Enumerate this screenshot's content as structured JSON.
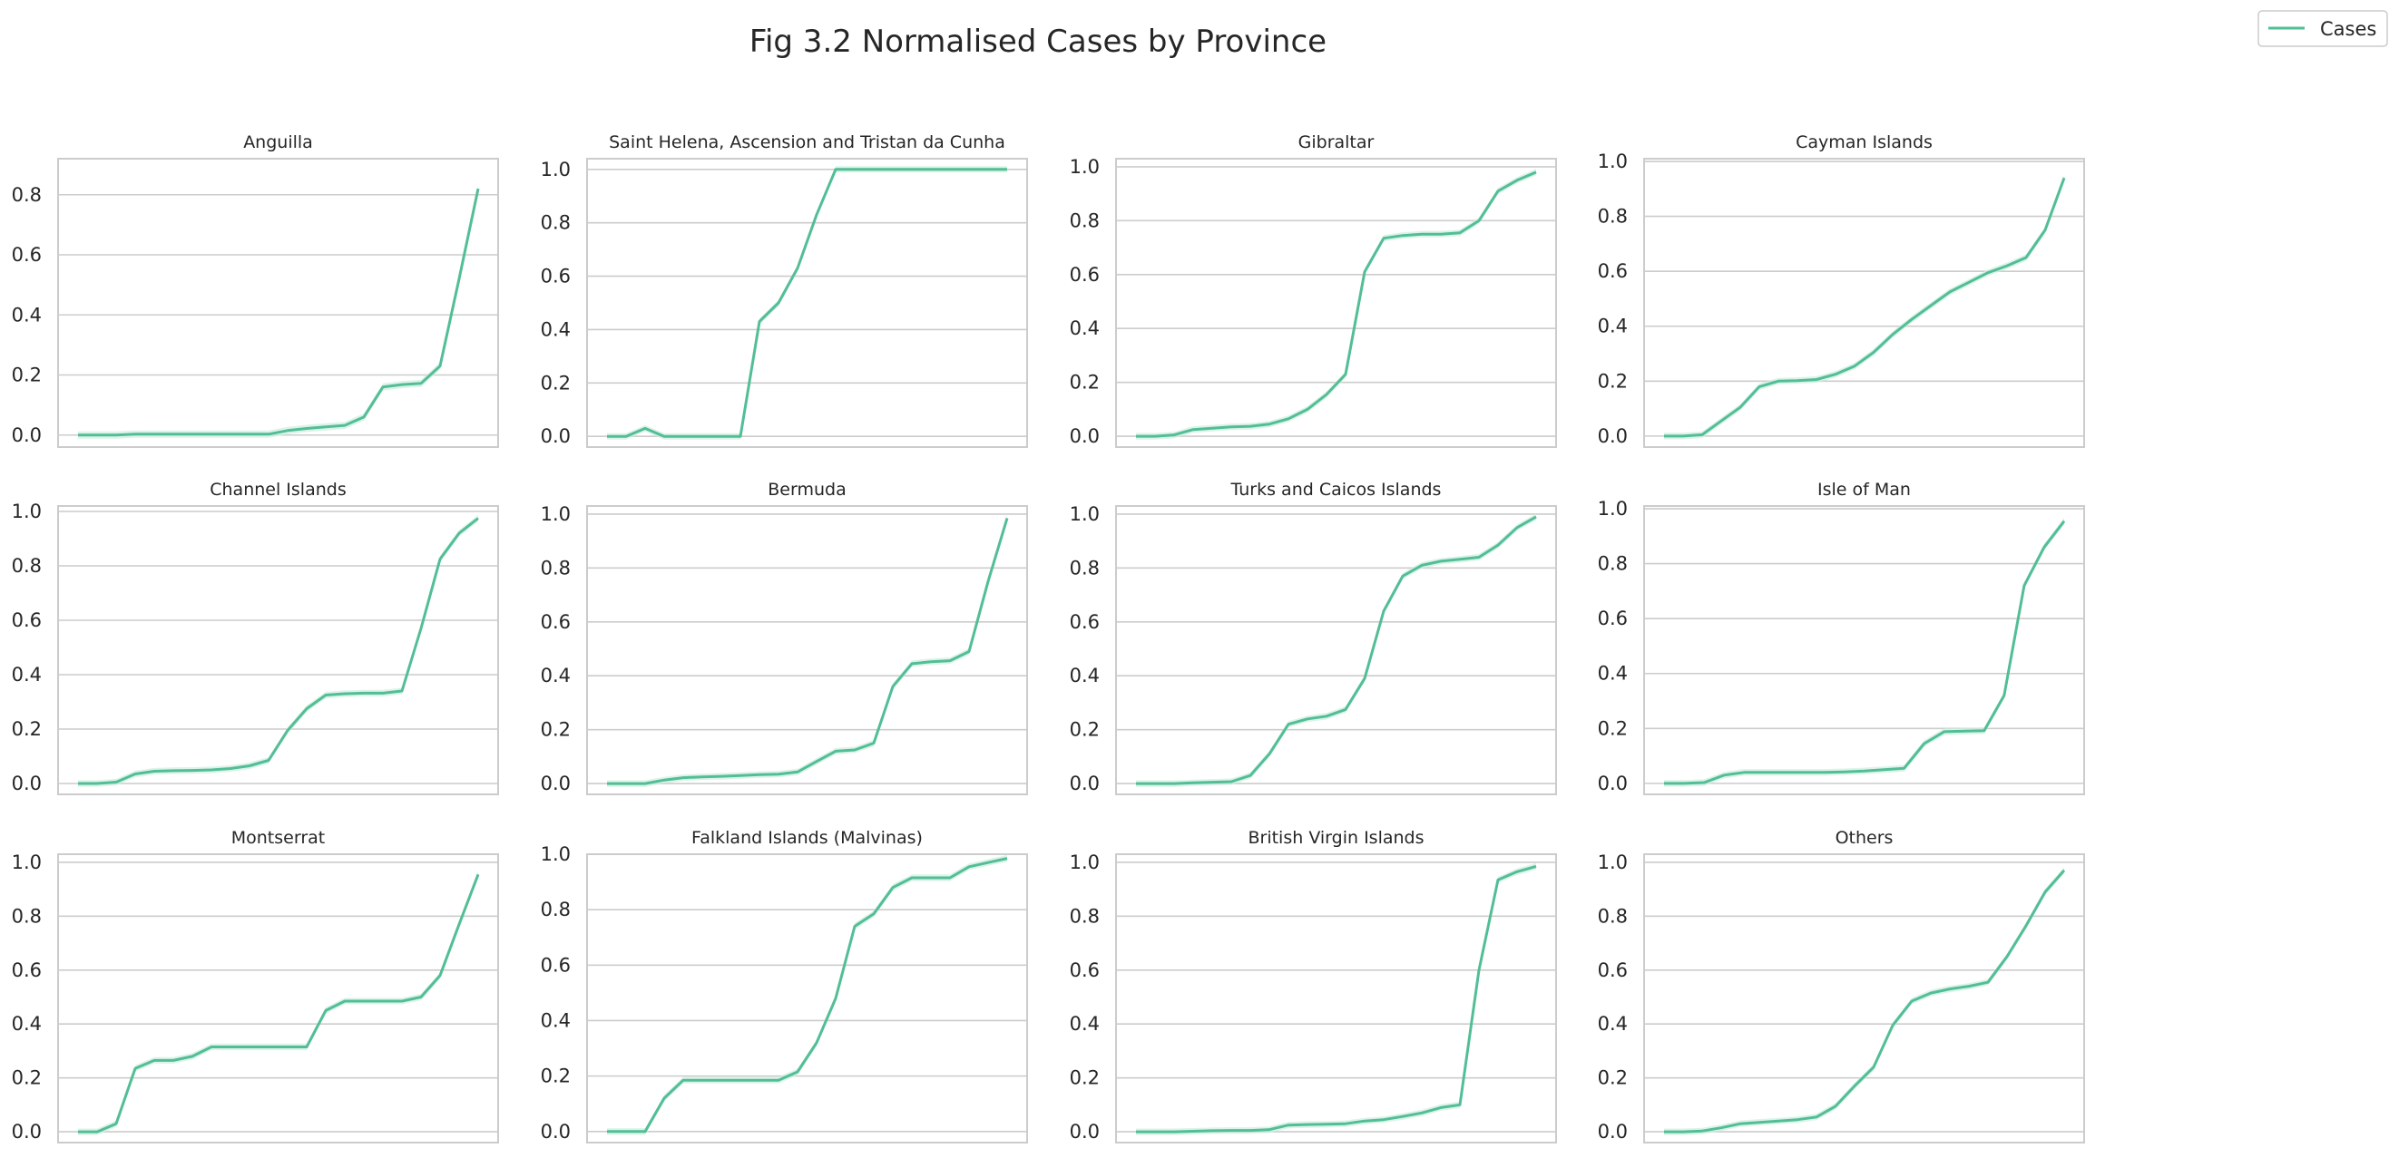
{
  "figure": {
    "title": "Fig 3.2 Normalised Cases by Province",
    "legend": {
      "label": "Cases",
      "placement": "top-right"
    },
    "colors": {
      "line": "#52be96",
      "band": "#cdeee0",
      "grid": "#cccccc",
      "axes": "#cccccc",
      "text": "#262626"
    }
  },
  "chart_data": [
    {
      "type": "line",
      "title": "Anguilla",
      "ylim": [
        -0.04,
        0.92
      ],
      "yticks": [
        "0.0",
        "0.2",
        "0.4",
        "0.6",
        "0.8"
      ],
      "grid": true,
      "series": [
        {
          "name": "Cases",
          "values": [
            0.0,
            0.0,
            0.0,
            0.003,
            0.003,
            0.003,
            0.003,
            0.003,
            0.003,
            0.003,
            0.003,
            0.015,
            0.022,
            0.027,
            0.032,
            0.06,
            0.16,
            0.168,
            0.172,
            0.23,
            0.52,
            0.82
          ]
        }
      ]
    },
    {
      "type": "line",
      "title": "Saint Helena, Ascension and Tristan da Cunha",
      "ylim": [
        -0.04,
        1.04
      ],
      "yticks": [
        "0.0",
        "0.2",
        "0.4",
        "0.6",
        "0.8",
        "1.0"
      ],
      "grid": true,
      "series": [
        {
          "name": "Cases",
          "values": [
            0.0,
            0.0,
            0.03,
            0.0,
            0.0,
            0.0,
            0.0,
            0.0,
            0.43,
            0.5,
            0.63,
            0.83,
            1.0,
            1.0,
            1.0,
            1.0,
            1.0,
            1.0,
            1.0,
            1.0,
            1.0,
            1.0
          ]
        }
      ]
    },
    {
      "type": "line",
      "title": "Gibraltar",
      "ylim": [
        -0.04,
        1.03
      ],
      "yticks": [
        "0.0",
        "0.2",
        "0.4",
        "0.6",
        "0.8",
        "1.0"
      ],
      "grid": true,
      "series": [
        {
          "name": "Cases",
          "values": [
            0.0,
            0.0,
            0.005,
            0.025,
            0.03,
            0.035,
            0.037,
            0.045,
            0.065,
            0.1,
            0.155,
            0.23,
            0.61,
            0.735,
            0.745,
            0.75,
            0.75,
            0.755,
            0.8,
            0.91,
            0.95,
            0.98
          ]
        }
      ]
    },
    {
      "type": "line",
      "title": "Cayman Islands",
      "ylim": [
        -0.04,
        1.01
      ],
      "yticks": [
        "0.0",
        "0.2",
        "0.4",
        "0.6",
        "0.8",
        "1.0"
      ],
      "grid": true,
      "series": [
        {
          "name": "Cases",
          "values": [
            0.0,
            0.0,
            0.005,
            0.055,
            0.105,
            0.18,
            0.2,
            0.202,
            0.206,
            0.225,
            0.255,
            0.305,
            0.37,
            0.425,
            0.475,
            0.525,
            0.56,
            0.595,
            0.62,
            0.65,
            0.75,
            0.94
          ]
        }
      ]
    },
    {
      "type": "line",
      "title": "Channel Islands",
      "ylim": [
        -0.04,
        1.02
      ],
      "yticks": [
        "0.0",
        "0.2",
        "0.4",
        "0.6",
        "0.8",
        "1.0"
      ],
      "grid": true,
      "series": [
        {
          "name": "Cases",
          "values": [
            0.0,
            0.0,
            0.005,
            0.035,
            0.045,
            0.047,
            0.048,
            0.05,
            0.055,
            0.065,
            0.085,
            0.195,
            0.275,
            0.325,
            0.33,
            0.332,
            0.332,
            0.34,
            0.57,
            0.825,
            0.92,
            0.975
          ]
        }
      ]
    },
    {
      "type": "line",
      "title": "Bermuda",
      "ylim": [
        -0.04,
        1.03
      ],
      "yticks": [
        "0.0",
        "0.2",
        "0.4",
        "0.6",
        "0.8",
        "1.0"
      ],
      "grid": true,
      "series": [
        {
          "name": "Cases",
          "values": [
            0.0,
            0.0,
            0.0,
            0.013,
            0.022,
            0.025,
            0.027,
            0.03,
            0.033,
            0.035,
            0.043,
            0.082,
            0.12,
            0.125,
            0.15,
            0.36,
            0.445,
            0.452,
            0.456,
            0.49,
            0.75,
            0.985
          ]
        }
      ]
    },
    {
      "type": "line",
      "title": "Turks and Caicos Islands",
      "ylim": [
        -0.04,
        1.03
      ],
      "yticks": [
        "0.0",
        "0.2",
        "0.4",
        "0.6",
        "0.8",
        "1.0"
      ],
      "grid": true,
      "series": [
        {
          "name": "Cases",
          "values": [
            0.0,
            0.0,
            0.0,
            0.003,
            0.005,
            0.007,
            0.03,
            0.11,
            0.22,
            0.24,
            0.25,
            0.275,
            0.39,
            0.64,
            0.77,
            0.81,
            0.825,
            0.832,
            0.84,
            0.885,
            0.95,
            0.99
          ]
        }
      ]
    },
    {
      "type": "line",
      "title": "Isle of Man",
      "ylim": [
        -0.04,
        1.01
      ],
      "yticks": [
        "0.0",
        "0.2",
        "0.4",
        "0.6",
        "0.8",
        "1.0"
      ],
      "grid": true,
      "series": [
        {
          "name": "Cases",
          "values": [
            0.0,
            0.0,
            0.003,
            0.03,
            0.04,
            0.04,
            0.04,
            0.04,
            0.04,
            0.042,
            0.045,
            0.05,
            0.055,
            0.145,
            0.188,
            0.19,
            0.192,
            0.32,
            0.72,
            0.86,
            0.955
          ]
        }
      ]
    },
    {
      "type": "line",
      "title": "Montserrat",
      "ylim": [
        -0.04,
        1.03
      ],
      "yticks": [
        "0.0",
        "0.2",
        "0.4",
        "0.6",
        "0.8",
        "1.0"
      ],
      "grid": true,
      "series": [
        {
          "name": "Cases",
          "values": [
            0.0,
            0.0,
            0.03,
            0.235,
            0.265,
            0.265,
            0.28,
            0.315,
            0.315,
            0.315,
            0.315,
            0.315,
            0.315,
            0.45,
            0.485,
            0.485,
            0.485,
            0.485,
            0.5,
            0.58,
            0.77,
            0.955
          ]
        }
      ]
    },
    {
      "type": "line",
      "title": "Falkland Islands (Malvinas)",
      "ylim": [
        -0.04,
        1.0
      ],
      "yticks": [
        "0.0",
        "0.2",
        "0.4",
        "0.6",
        "0.8",
        "1.0"
      ],
      "grid": true,
      "series": [
        {
          "name": "Cases",
          "values": [
            0.0,
            0.0,
            0.0,
            0.12,
            0.185,
            0.185,
            0.185,
            0.185,
            0.185,
            0.185,
            0.215,
            0.32,
            0.48,
            0.74,
            0.785,
            0.88,
            0.915,
            0.915,
            0.915,
            0.955,
            0.97,
            0.985
          ]
        }
      ]
    },
    {
      "type": "line",
      "title": "British Virgin Islands",
      "ylim": [
        -0.04,
        1.03
      ],
      "yticks": [
        "0.0",
        "0.2",
        "0.4",
        "0.6",
        "0.8",
        "1.0"
      ],
      "grid": true,
      "series": [
        {
          "name": "Cases",
          "values": [
            0.0,
            0.0,
            0.0,
            0.002,
            0.004,
            0.005,
            0.005,
            0.008,
            0.025,
            0.027,
            0.028,
            0.03,
            0.04,
            0.045,
            0.057,
            0.07,
            0.09,
            0.1,
            0.6,
            0.935,
            0.965,
            0.985
          ]
        }
      ]
    },
    {
      "type": "line",
      "title": "Others",
      "ylim": [
        -0.04,
        1.03
      ],
      "yticks": [
        "0.0",
        "0.2",
        "0.4",
        "0.6",
        "0.8",
        "1.0"
      ],
      "grid": true,
      "series": [
        {
          "name": "Cases",
          "values": [
            0.0,
            0.0,
            0.003,
            0.015,
            0.03,
            0.035,
            0.04,
            0.045,
            0.055,
            0.095,
            0.17,
            0.24,
            0.395,
            0.485,
            0.515,
            0.53,
            0.54,
            0.555,
            0.65,
            0.765,
            0.89,
            0.97
          ]
        }
      ]
    }
  ]
}
